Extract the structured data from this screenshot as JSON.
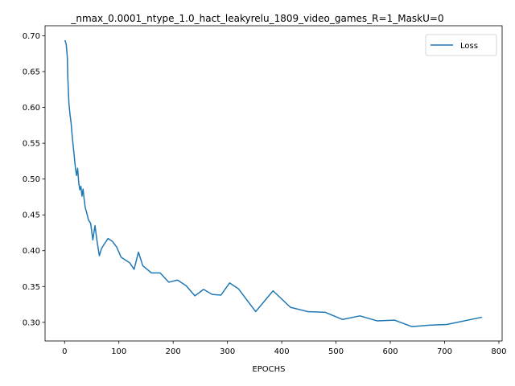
{
  "chart_data": {
    "type": "line",
    "title": "_nmax_0.0001_ntype_1.0_hact_leakyrelu_1809_video_games_R=1_MaskU=0",
    "xlabel": "EPOCHS",
    "ylabel": "",
    "xlim": [
      -36,
      806
    ],
    "ylim": [
      0.274,
      0.714
    ],
    "xticks": [
      0,
      100,
      200,
      300,
      400,
      500,
      600,
      700,
      800
    ],
    "yticks": [
      0.3,
      0.35,
      0.4,
      0.45,
      0.5,
      0.55,
      0.6,
      0.65,
      0.7
    ],
    "xtick_labels": [
      "0",
      "100",
      "200",
      "300",
      "400",
      "500",
      "600",
      "700",
      "800"
    ],
    "ytick_labels": [
      "0.30",
      "0.35",
      "0.40",
      "0.45",
      "0.50",
      "0.55",
      "0.60",
      "0.65",
      "0.70"
    ],
    "grid": false,
    "legend_position": "top-right",
    "series": [
      {
        "name": "Loss",
        "color": "#1f77b4",
        "x": [
          1,
          3,
          5,
          6,
          8,
          10,
          12,
          14,
          16,
          18,
          20,
          22,
          24,
          26,
          28,
          30,
          32,
          34,
          36,
          38,
          40,
          44,
          48,
          52,
          56,
          60,
          64,
          68,
          72,
          80,
          88,
          96,
          104,
          112,
          120,
          128,
          136,
          144,
          160,
          176,
          192,
          208,
          224,
          240,
          256,
          272,
          288,
          304,
          320,
          352,
          384,
          416,
          448,
          480,
          512,
          544,
          576,
          608,
          640,
          672,
          704,
          768
        ],
        "y": [
          0.693,
          0.688,
          0.67,
          0.64,
          0.605,
          0.59,
          0.578,
          0.56,
          0.545,
          0.53,
          0.515,
          0.505,
          0.515,
          0.495,
          0.485,
          0.49,
          0.476,
          0.486,
          0.472,
          0.46,
          0.455,
          0.443,
          0.438,
          0.415,
          0.435,
          0.412,
          0.393,
          0.403,
          0.408,
          0.417,
          0.413,
          0.405,
          0.391,
          0.387,
          0.383,
          0.374,
          0.398,
          0.379,
          0.369,
          0.369,
          0.356,
          0.359,
          0.351,
          0.337,
          0.346,
          0.339,
          0.338,
          0.355,
          0.347,
          0.315,
          0.344,
          0.321,
          0.315,
          0.314,
          0.304,
          0.309,
          0.302,
          0.303,
          0.294,
          0.296,
          0.297,
          0.307
        ]
      }
    ]
  }
}
